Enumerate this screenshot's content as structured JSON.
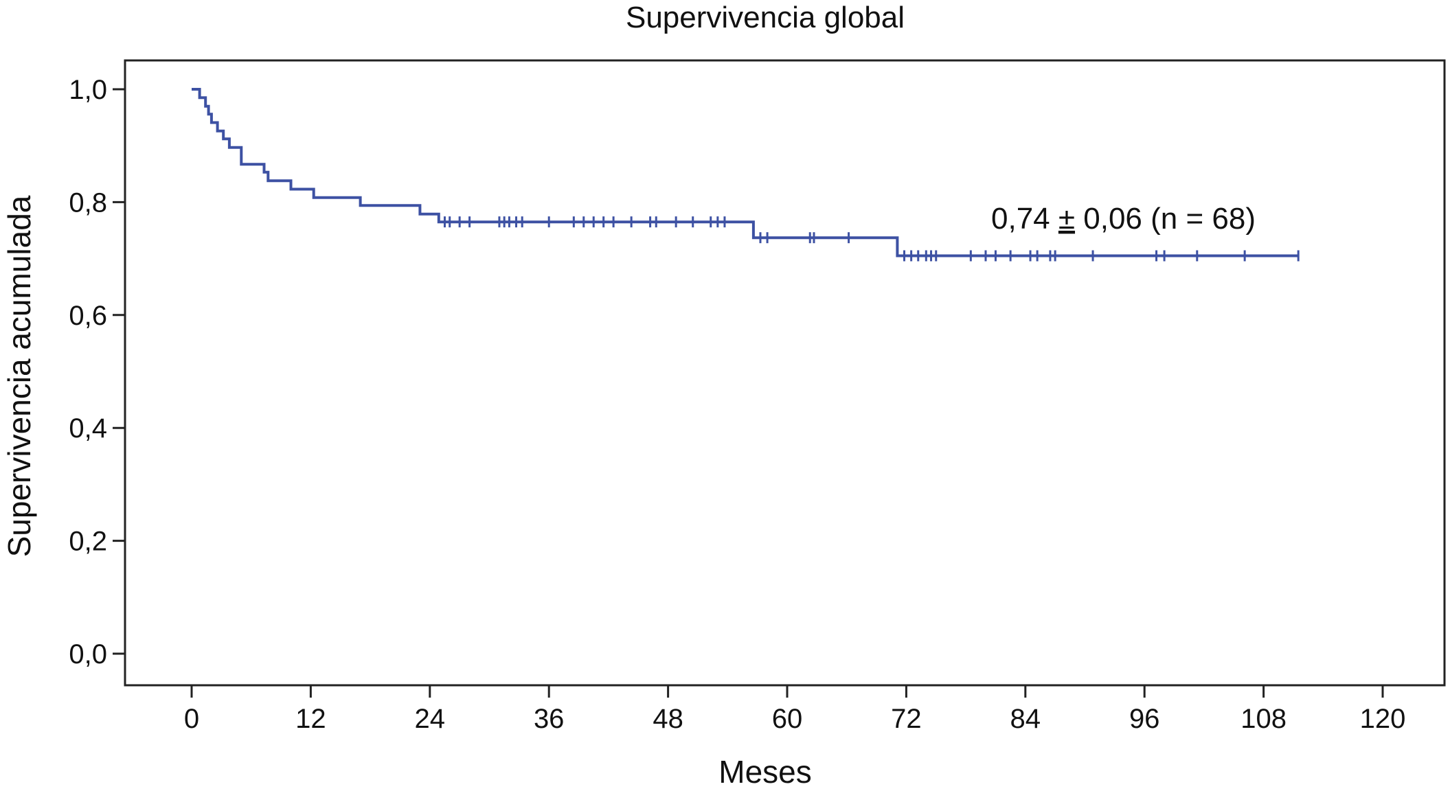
{
  "chart_data": {
    "type": "line",
    "title": "Supervivencia global",
    "xlabel": "Meses",
    "ylabel": "Supervivencia acumulada",
    "xlim": [
      0,
      120
    ],
    "ylim": [
      0,
      1
    ],
    "x_ticks": [
      0,
      12,
      24,
      36,
      48,
      60,
      72,
      84,
      96,
      108,
      120
    ],
    "x_tick_labels": [
      "0",
      "12",
      "24",
      "36",
      "48",
      "60",
      "72",
      "84",
      "96",
      "108",
      "120"
    ],
    "y_ticks": [
      0,
      0.2,
      0.4,
      0.6,
      0.8,
      1.0
    ],
    "y_tick_labels": [
      "0,0",
      "0,2",
      "0,4",
      "0,6",
      "0,8",
      "1,0"
    ],
    "grid": false,
    "line_color": "#3d51a3",
    "annotation": {
      "prefix": "0,74 ",
      "pm": "±",
      "suffix": " 0,06 (n = 68)"
    },
    "series": [
      {
        "steps": [
          [
            0,
            1.0
          ],
          [
            0.8,
            0.985
          ],
          [
            1.4,
            0.97
          ],
          [
            1.7,
            0.956
          ],
          [
            2.0,
            0.941
          ],
          [
            2.6,
            0.926
          ],
          [
            3.2,
            0.912
          ],
          [
            3.8,
            0.897
          ],
          [
            5.0,
            0.867
          ],
          [
            7.3,
            0.853
          ],
          [
            7.7,
            0.838
          ],
          [
            10.0,
            0.823
          ],
          [
            12.3,
            0.808
          ],
          [
            17.0,
            0.794
          ],
          [
            23.0,
            0.779
          ],
          [
            24.9,
            0.765
          ],
          [
            56.6,
            0.737
          ],
          [
            71.1,
            0.705
          ],
          [
            76.0,
            0.705
          ],
          [
            111.5,
            0.705
          ]
        ],
        "censored": [
          [
            25.5,
            0.765
          ],
          [
            26.0,
            0.765
          ],
          [
            27.0,
            0.765
          ],
          [
            28.0,
            0.765
          ],
          [
            31.0,
            0.765
          ],
          [
            31.5,
            0.765
          ],
          [
            32.0,
            0.765
          ],
          [
            32.7,
            0.765
          ],
          [
            33.3,
            0.765
          ],
          [
            36.0,
            0.765
          ],
          [
            38.5,
            0.765
          ],
          [
            39.5,
            0.765
          ],
          [
            40.5,
            0.765
          ],
          [
            41.5,
            0.765
          ],
          [
            42.5,
            0.765
          ],
          [
            44.3,
            0.765
          ],
          [
            46.2,
            0.765
          ],
          [
            46.8,
            0.765
          ],
          [
            48.8,
            0.765
          ],
          [
            50.5,
            0.765
          ],
          [
            52.3,
            0.765
          ],
          [
            53.0,
            0.765
          ],
          [
            53.7,
            0.765
          ],
          [
            57.3,
            0.737
          ],
          [
            58.0,
            0.737
          ],
          [
            62.3,
            0.737
          ],
          [
            62.7,
            0.737
          ],
          [
            66.2,
            0.737
          ],
          [
            71.8,
            0.705
          ],
          [
            72.5,
            0.705
          ],
          [
            73.2,
            0.705
          ],
          [
            74.0,
            0.705
          ],
          [
            74.5,
            0.705
          ],
          [
            75.0,
            0.705
          ],
          [
            78.5,
            0.705
          ],
          [
            80.0,
            0.705
          ],
          [
            81.0,
            0.705
          ],
          [
            82.5,
            0.705
          ],
          [
            84.5,
            0.705
          ],
          [
            85.2,
            0.705
          ],
          [
            86.5,
            0.705
          ],
          [
            87.0,
            0.705
          ],
          [
            90.8,
            0.705
          ],
          [
            97.2,
            0.705
          ],
          [
            98.0,
            0.705
          ],
          [
            101.3,
            0.705
          ],
          [
            106.1,
            0.705
          ],
          [
            111.5,
            0.705
          ]
        ]
      }
    ]
  }
}
